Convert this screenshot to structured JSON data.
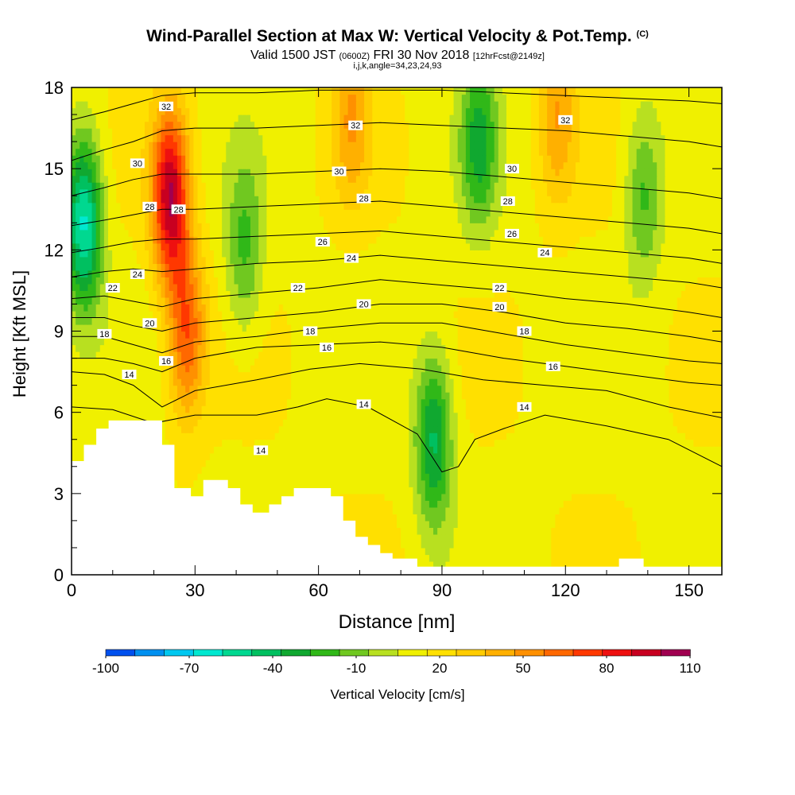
{
  "header": {
    "title": "Wind-Parallel Section at Max W: Vertical Velocity & Pot.Temp.",
    "title_suffix": "(C)",
    "valid_prefix": "Valid 1500 JST",
    "valid_zulu": "(0600Z)",
    "valid_date": "FRI 30 Nov 2018",
    "forecast_info": "[12hrFcst@2149z]",
    "indices": "i,j,k,angle=34,23,24,93"
  },
  "chart_data": {
    "type": "heatmap",
    "xlabel": "Distance [nm]",
    "ylabel": "Height [Kft MSL]",
    "xlim": [
      0,
      158
    ],
    "ylim": [
      0,
      18
    ],
    "x_ticks": [
      "0",
      "30",
      "60",
      "90",
      "120",
      "150"
    ],
    "y_ticks": [
      "0",
      "3",
      "6",
      "9",
      "12",
      "15",
      "18"
    ],
    "colorbar": {
      "label": "Vertical Velocity [cm/s]",
      "min": -100,
      "max": 110,
      "step": 10,
      "tick_labels": [
        "-100",
        "-70",
        "-40",
        "-10",
        "20",
        "50",
        "80",
        "110"
      ],
      "colors": [
        "#1010ee",
        "#0050ee",
        "#0090f0",
        "#00c8f0",
        "#00e8d0",
        "#00d890",
        "#00c060",
        "#10a830",
        "#30b818",
        "#70c820",
        "#b8e020",
        "#f0f000",
        "#ffe000",
        "#ffcc00",
        "#ffb000",
        "#ff9000",
        "#ff6800",
        "#ff3800",
        "#ee1010",
        "#c80020",
        "#a00050",
        "#7010a0"
      ]
    },
    "velocity_features": [
      {
        "x": 3,
        "z": 13,
        "value": -70
      },
      {
        "x": 24,
        "z": 14,
        "value": 80
      },
      {
        "x": 28,
        "z": 9,
        "value": 50
      },
      {
        "x": 42,
        "z": 12,
        "value": -30
      },
      {
        "x": 88,
        "z": 5,
        "value": -50
      },
      {
        "x": 99,
        "z": 16,
        "value": -40
      },
      {
        "x": 139,
        "z": 14,
        "value": -30
      },
      {
        "x": 68,
        "z": 17,
        "value": 30
      },
      {
        "x": 118,
        "z": 17,
        "value": 30
      }
    ],
    "theta_contours": [
      {
        "label": "14",
        "pts": [
          [
            0,
            6.2
          ],
          [
            10,
            6.1
          ],
          [
            20,
            5.6
          ],
          [
            30,
            5.9
          ],
          [
            45,
            5.9
          ],
          [
            55,
            6.2
          ],
          [
            62,
            6.5
          ],
          [
            72,
            6.2
          ],
          [
            84,
            5.2
          ],
          [
            90,
            3.8
          ],
          [
            94,
            4.0
          ],
          [
            98,
            5.0
          ],
          [
            105,
            5.4
          ],
          [
            115,
            5.9
          ],
          [
            130,
            5.5
          ],
          [
            145,
            5.0
          ],
          [
            158,
            4.0
          ]
        ]
      },
      {
        "label": "14",
        "pts": [
          [
            0,
            7.5
          ],
          [
            8,
            7.4
          ],
          [
            15,
            7.0
          ],
          [
            22,
            6.2
          ],
          [
            30,
            6.8
          ],
          [
            45,
            7.2
          ],
          [
            58,
            7.6
          ],
          [
            70,
            7.8
          ],
          [
            85,
            7.6
          ],
          [
            100,
            7.2
          ],
          [
            115,
            7.0
          ],
          [
            130,
            6.8
          ],
          [
            145,
            6.2
          ],
          [
            158,
            5.8
          ]
        ]
      },
      {
        "label": "16",
        "pts": [
          [
            0,
            8.0
          ],
          [
            8,
            8.0
          ],
          [
            15,
            7.8
          ],
          [
            22,
            7.5
          ],
          [
            30,
            8.0
          ],
          [
            45,
            8.4
          ],
          [
            60,
            8.5
          ],
          [
            75,
            8.6
          ],
          [
            90,
            8.4
          ],
          [
            105,
            8.0
          ],
          [
            120,
            7.7
          ],
          [
            135,
            7.4
          ],
          [
            150,
            7.1
          ],
          [
            158,
            7.0
          ]
        ]
      },
      {
        "label": "18",
        "pts": [
          [
            0,
            8.8
          ],
          [
            8,
            8.8
          ],
          [
            15,
            8.5
          ],
          [
            22,
            8.2
          ],
          [
            30,
            8.6
          ],
          [
            45,
            8.8
          ],
          [
            60,
            9.1
          ],
          [
            75,
            9.3
          ],
          [
            90,
            9.3
          ],
          [
            105,
            8.9
          ],
          [
            120,
            8.5
          ],
          [
            135,
            8.2
          ],
          [
            150,
            7.9
          ],
          [
            158,
            7.8
          ]
        ]
      },
      {
        "label": "20",
        "pts": [
          [
            0,
            9.5
          ],
          [
            8,
            9.5
          ],
          [
            15,
            9.2
          ],
          [
            22,
            9.0
          ],
          [
            30,
            9.3
          ],
          [
            45,
            9.5
          ],
          [
            60,
            9.7
          ],
          [
            75,
            10.0
          ],
          [
            90,
            10.0
          ],
          [
            105,
            9.7
          ],
          [
            120,
            9.3
          ],
          [
            135,
            9.1
          ],
          [
            150,
            8.8
          ],
          [
            158,
            8.6
          ]
        ]
      },
      {
        "label": "22",
        "pts": [
          [
            0,
            10.2
          ],
          [
            8,
            10.3
          ],
          [
            15,
            10.1
          ],
          [
            22,
            9.9
          ],
          [
            30,
            10.2
          ],
          [
            45,
            10.4
          ],
          [
            60,
            10.6
          ],
          [
            75,
            10.9
          ],
          [
            90,
            10.7
          ],
          [
            105,
            10.5
          ],
          [
            120,
            10.2
          ],
          [
            135,
            10.0
          ],
          [
            150,
            9.7
          ],
          [
            158,
            9.5
          ]
        ]
      },
      {
        "label": "24",
        "pts": [
          [
            0,
            11.0
          ],
          [
            8,
            11.2
          ],
          [
            15,
            11.3
          ],
          [
            22,
            11.2
          ],
          [
            30,
            11.3
          ],
          [
            45,
            11.5
          ],
          [
            60,
            11.6
          ],
          [
            75,
            11.8
          ],
          [
            90,
            11.6
          ],
          [
            105,
            11.4
          ],
          [
            120,
            11.2
          ],
          [
            135,
            11.0
          ],
          [
            150,
            10.8
          ],
          [
            158,
            10.6
          ]
        ]
      },
      {
        "label": "26",
        "pts": [
          [
            0,
            11.9
          ],
          [
            8,
            12.1
          ],
          [
            15,
            12.3
          ],
          [
            22,
            12.4
          ],
          [
            30,
            12.4
          ],
          [
            45,
            12.5
          ],
          [
            60,
            12.6
          ],
          [
            75,
            12.7
          ],
          [
            90,
            12.5
          ],
          [
            105,
            12.3
          ],
          [
            120,
            12.1
          ],
          [
            135,
            11.9
          ],
          [
            150,
            11.7
          ],
          [
            158,
            11.5
          ]
        ]
      },
      {
        "label": "28",
        "pts": [
          [
            0,
            12.9
          ],
          [
            8,
            13.1
          ],
          [
            15,
            13.3
          ],
          [
            22,
            13.5
          ],
          [
            30,
            13.5
          ],
          [
            45,
            13.6
          ],
          [
            60,
            13.7
          ],
          [
            75,
            13.8
          ],
          [
            90,
            13.6
          ],
          [
            105,
            13.4
          ],
          [
            120,
            13.2
          ],
          [
            135,
            13.0
          ],
          [
            150,
            12.8
          ],
          [
            158,
            12.6
          ]
        ]
      },
      {
        "label": "30",
        "pts": [
          [
            0,
            14.0
          ],
          [
            8,
            14.3
          ],
          [
            15,
            14.6
          ],
          [
            22,
            14.8
          ],
          [
            30,
            14.8
          ],
          [
            45,
            14.8
          ],
          [
            60,
            14.9
          ],
          [
            75,
            15.0
          ],
          [
            90,
            14.9
          ],
          [
            105,
            14.7
          ],
          [
            120,
            14.5
          ],
          [
            135,
            14.3
          ],
          [
            150,
            14.1
          ],
          [
            158,
            13.9
          ]
        ]
      },
      {
        "label": "32",
        "pts": [
          [
            0,
            15.3
          ],
          [
            8,
            15.7
          ],
          [
            15,
            16.0
          ],
          [
            22,
            16.4
          ],
          [
            30,
            16.5
          ],
          [
            45,
            16.5
          ],
          [
            60,
            16.6
          ],
          [
            75,
            16.7
          ],
          [
            90,
            16.6
          ],
          [
            105,
            16.5
          ],
          [
            120,
            16.4
          ],
          [
            135,
            16.2
          ],
          [
            150,
            16.0
          ],
          [
            158,
            15.8
          ]
        ]
      },
      {
        "label": "32",
        "pts": [
          [
            0,
            16.8
          ],
          [
            8,
            17.1
          ],
          [
            15,
            17.4
          ],
          [
            22,
            17.7
          ],
          [
            30,
            17.8
          ],
          [
            45,
            17.8
          ],
          [
            60,
            17.9
          ],
          [
            75,
            17.9
          ],
          [
            90,
            17.9
          ],
          [
            105,
            17.8
          ],
          [
            120,
            17.7
          ],
          [
            135,
            17.6
          ],
          [
            150,
            17.5
          ],
          [
            158,
            17.4
          ]
        ]
      }
    ],
    "contour_labels": [
      {
        "text": "32",
        "x": 23,
        "z": 17.3
      },
      {
        "text": "32",
        "x": 69,
        "z": 16.6
      },
      {
        "text": "32",
        "x": 120,
        "z": 16.8
      },
      {
        "text": "30",
        "x": 16,
        "z": 15.2
      },
      {
        "text": "30",
        "x": 65,
        "z": 14.9
      },
      {
        "text": "30",
        "x": 107,
        "z": 15.0
      },
      {
        "text": "28",
        "x": 19,
        "z": 13.6
      },
      {
        "text": "28",
        "x": 26,
        "z": 13.5
      },
      {
        "text": "28",
        "x": 71,
        "z": 13.9
      },
      {
        "text": "28",
        "x": 106,
        "z": 13.8
      },
      {
        "text": "26",
        "x": 61,
        "z": 12.3
      },
      {
        "text": "26",
        "x": 107,
        "z": 12.6
      },
      {
        "text": "24",
        "x": 16,
        "z": 11.1
      },
      {
        "text": "24",
        "x": 68,
        "z": 11.7
      },
      {
        "text": "24",
        "x": 115,
        "z": 11.9
      },
      {
        "text": "22",
        "x": 10,
        "z": 10.6
      },
      {
        "text": "22",
        "x": 55,
        "z": 10.6
      },
      {
        "text": "22",
        "x": 104,
        "z": 10.6
      },
      {
        "text": "20",
        "x": 19,
        "z": 9.3
      },
      {
        "text": "20",
        "x": 71,
        "z": 10.0
      },
      {
        "text": "20",
        "x": 104,
        "z": 9.9
      },
      {
        "text": "18",
        "x": 8,
        "z": 8.9
      },
      {
        "text": "18",
        "x": 58,
        "z": 9.0
      },
      {
        "text": "18",
        "x": 110,
        "z": 9.0
      },
      {
        "text": "16",
        "x": 23,
        "z": 7.9
      },
      {
        "text": "16",
        "x": 62,
        "z": 8.4
      },
      {
        "text": "16",
        "x": 117,
        "z": 7.7
      },
      {
        "text": "14",
        "x": 14,
        "z": 7.4
      },
      {
        "text": "14",
        "x": 71,
        "z": 6.3
      },
      {
        "text": "14",
        "x": 110,
        "z": 6.2
      },
      {
        "text": "14",
        "x": 46,
        "z": 4.6
      }
    ],
    "terrain": [
      [
        0,
        4.2
      ],
      [
        3,
        4.2
      ],
      [
        3,
        4.8
      ],
      [
        6,
        4.8
      ],
      [
        6,
        5.4
      ],
      [
        9,
        5.4
      ],
      [
        9,
        5.7
      ],
      [
        22,
        5.7
      ],
      [
        22,
        4.8
      ],
      [
        25,
        4.8
      ],
      [
        25,
        3.2
      ],
      [
        29,
        3.2
      ],
      [
        29,
        2.9
      ],
      [
        32,
        2.9
      ],
      [
        32,
        3.5
      ],
      [
        38,
        3.5
      ],
      [
        38,
        3.2
      ],
      [
        41,
        3.2
      ],
      [
        41,
        2.6
      ],
      [
        44,
        2.6
      ],
      [
        44,
        2.3
      ],
      [
        48,
        2.3
      ],
      [
        48,
        2.6
      ],
      [
        51,
        2.6
      ],
      [
        51,
        2.9
      ],
      [
        54,
        2.9
      ],
      [
        54,
        3.2
      ],
      [
        63,
        3.2
      ],
      [
        63,
        2.9
      ],
      [
        66,
        2.9
      ],
      [
        66,
        2.0
      ],
      [
        69,
        2.0
      ],
      [
        69,
        1.4
      ],
      [
        72,
        1.4
      ],
      [
        72,
        1.1
      ],
      [
        75,
        1.1
      ],
      [
        75,
        0.8
      ],
      [
        78,
        0.8
      ],
      [
        78,
        0.6
      ],
      [
        84,
        0.6
      ],
      [
        84,
        0.3
      ],
      [
        133,
        0.3
      ],
      [
        133,
        0.6
      ],
      [
        139,
        0.6
      ],
      [
        139,
        0.3
      ],
      [
        158,
        0.3
      ]
    ]
  }
}
